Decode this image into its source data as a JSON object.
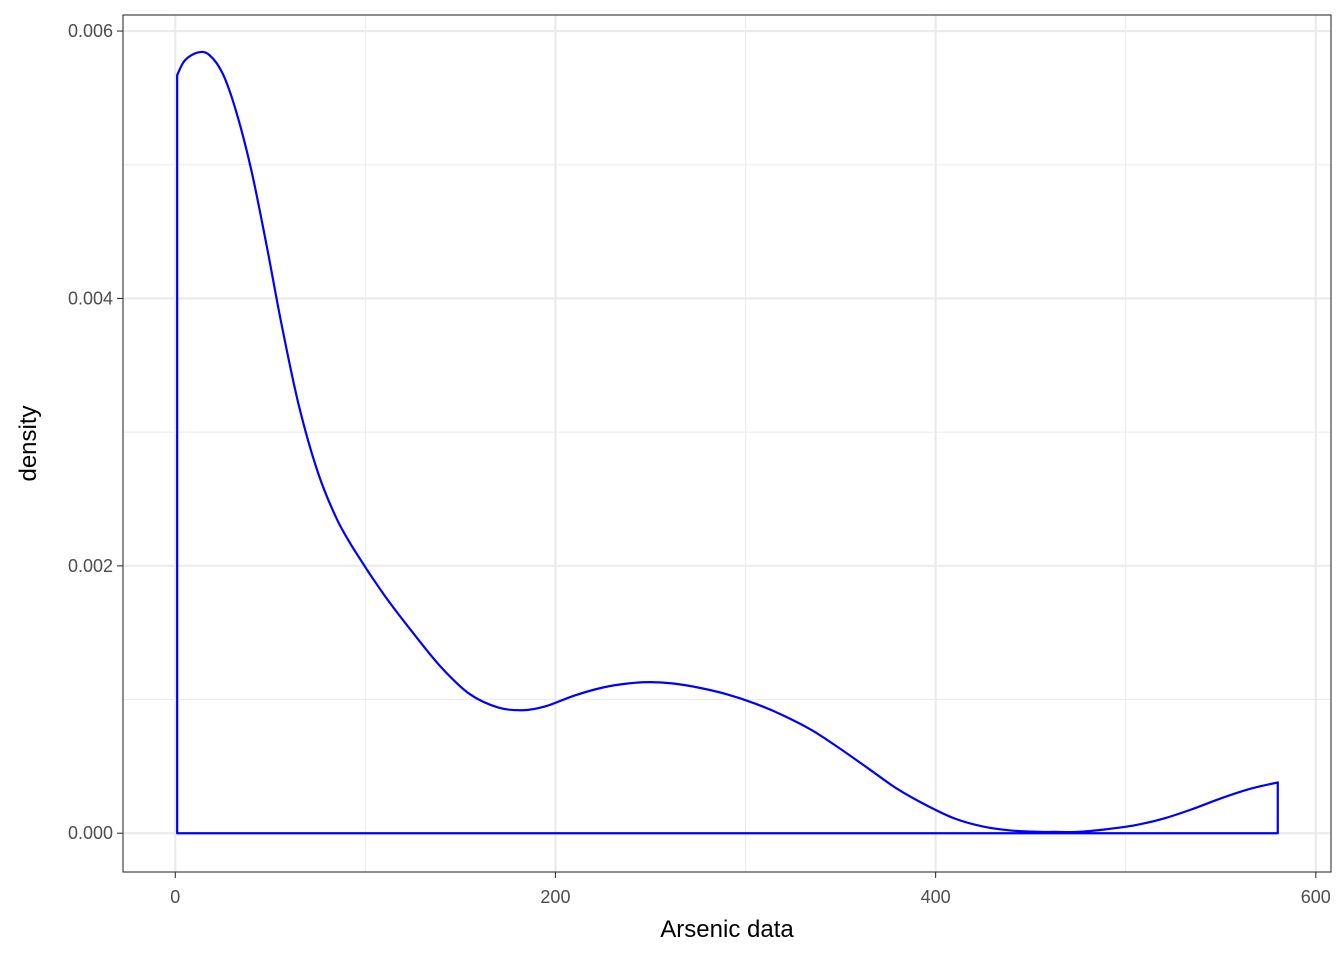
{
  "chart_data": {
    "type": "area",
    "title": "",
    "xlabel": "Arsenic data",
    "ylabel": "density",
    "xlim": [
      -27.5,
      608
    ],
    "ylim": [
      -0.00029,
      0.00612
    ],
    "x_ticks": [
      0,
      200,
      400,
      600
    ],
    "x_tick_labels": [
      "0",
      "200",
      "400",
      "600"
    ],
    "y_ticks": [
      0,
      0.002,
      0.004,
      0.006
    ],
    "y_tick_labels": [
      "0.000",
      "0.002",
      "0.004",
      "0.006"
    ],
    "x_minor": [
      100,
      300,
      500
    ],
    "y_minor": [
      0.001,
      0.003,
      0.005
    ],
    "grid": true,
    "legend": "none",
    "series": [
      {
        "color": "#0000ff",
        "fill": "none",
        "x": [
          1,
          5,
          12,
          18,
          25,
          32,
          40,
          48,
          56,
          65,
          75,
          85,
          95,
          110,
          125,
          140,
          155,
          170,
          183,
          195,
          210,
          225,
          238,
          250,
          262,
          275,
          290,
          305,
          320,
          335,
          350,
          365,
          380,
          395,
          410,
          425,
          440,
          455,
          462,
          475,
          490,
          505,
          520,
          535,
          550,
          565,
          580
        ],
        "y": [
          0.00567,
          0.00578,
          0.00584,
          0.00582,
          0.00568,
          0.0054,
          0.00496,
          0.0044,
          0.0038,
          0.0032,
          0.0027,
          0.00235,
          0.0021,
          0.00178,
          0.0015,
          0.00124,
          0.00104,
          0.00094,
          0.00092,
          0.00095,
          0.00103,
          0.00109,
          0.00112,
          0.00113,
          0.00112,
          0.00109,
          0.00104,
          0.00097,
          0.00088,
          0.00077,
          0.00063,
          0.00048,
          0.00033,
          0.00021,
          0.00011,
          5e-05,
          2e-05,
          1e-05,
          1e-05,
          1e-05,
          3e-05,
          6e-05,
          0.00011,
          0.00018,
          0.00026,
          0.00033,
          0.00038
        ]
      }
    ]
  }
}
